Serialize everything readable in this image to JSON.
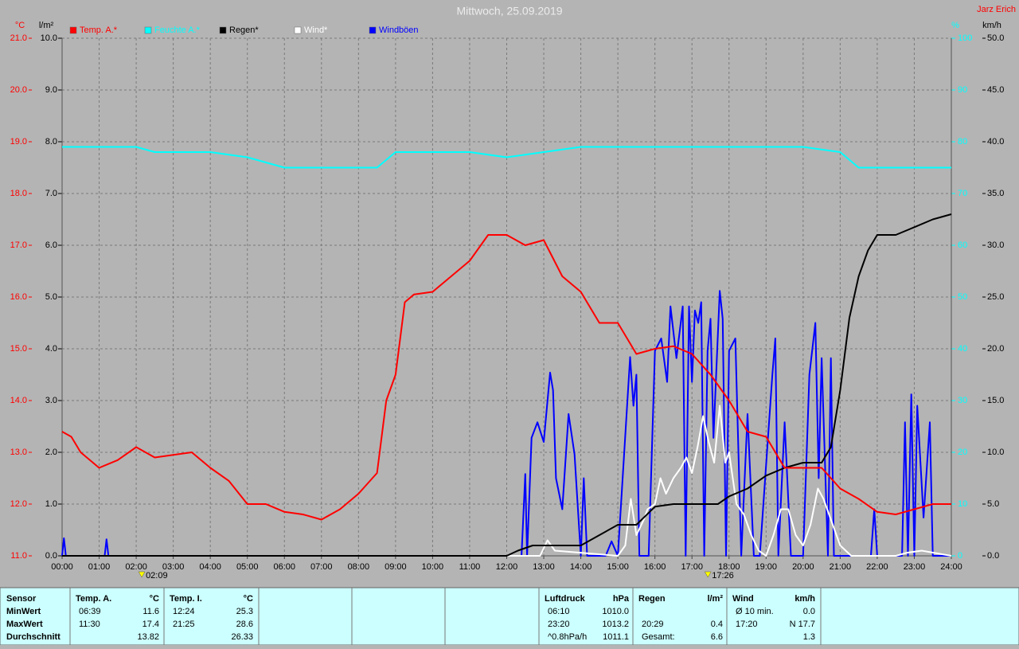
{
  "chart_data": {
    "type": "line",
    "title": "Mittwoch, 25.09.2019",
    "author": "Jarz Erich",
    "ylabel": "°C",
    "y2label": "l/m²",
    "y3label": "%",
    "y4label": "km/h",
    "xlim": [
      0,
      24
    ],
    "xticks": [
      {
        "value": 0,
        "label": "00:00"
      },
      {
        "value": 1,
        "label": "01:00"
      },
      {
        "value": 2,
        "label": "02:00"
      },
      {
        "value": 3,
        "label": "03:00"
      },
      {
        "value": 4,
        "label": "04:00"
      },
      {
        "value": 5,
        "label": "05:00"
      },
      {
        "value": 6,
        "label": "06:00"
      },
      {
        "value": 7,
        "label": "07:00"
      },
      {
        "value": 8,
        "label": "08:00"
      },
      {
        "value": 9,
        "label": "09:00"
      },
      {
        "value": 10,
        "label": "10:00"
      },
      {
        "value": 11,
        "label": "11:00"
      },
      {
        "value": 12,
        "label": "12:00"
      },
      {
        "value": 13,
        "label": "13:00"
      },
      {
        "value": 14,
        "label": "14:00"
      },
      {
        "value": 15,
        "label": "15:00"
      },
      {
        "value": 16,
        "label": "16:00"
      },
      {
        "value": 17,
        "label": "17:00"
      },
      {
        "value": 18,
        "label": "18:00"
      },
      {
        "value": 19,
        "label": "19:00"
      },
      {
        "value": 20,
        "label": "20:00"
      },
      {
        "value": 21,
        "label": "21:00"
      },
      {
        "value": 22,
        "label": "22:00"
      },
      {
        "value": 23,
        "label": "23:00"
      },
      {
        "value": 24,
        "label": "24:00"
      }
    ],
    "ylim": [
      11,
      21
    ],
    "yticks": [
      {
        "value": 11,
        "label": "11.0"
      },
      {
        "value": 12,
        "label": "12.0"
      },
      {
        "value": 13,
        "label": "13.0"
      },
      {
        "value": 14,
        "label": "14.0"
      },
      {
        "value": 15,
        "label": "15.0"
      },
      {
        "value": 16,
        "label": "16.0"
      },
      {
        "value": 17,
        "label": "17.0"
      },
      {
        "value": 18,
        "label": "18.0"
      },
      {
        "value": 19,
        "label": "19.0"
      },
      {
        "value": 20,
        "label": "20.0"
      },
      {
        "value": 21,
        "label": "21.0"
      }
    ],
    "y2lim": [
      0,
      10
    ],
    "y2ticks": [
      {
        "value": 0,
        "label": "0.0"
      },
      {
        "value": 1,
        "label": "1.0"
      },
      {
        "value": 2,
        "label": "2.0"
      },
      {
        "value": 3,
        "label": "3.0"
      },
      {
        "value": 4,
        "label": "4.0"
      },
      {
        "value": 5,
        "label": "5.0"
      },
      {
        "value": 6,
        "label": "6.0"
      },
      {
        "value": 7,
        "label": "7.0"
      },
      {
        "value": 8,
        "label": "8.0"
      },
      {
        "value": 9,
        "label": "9.0"
      },
      {
        "value": 10,
        "label": "10.0"
      }
    ],
    "y3lim": [
      0,
      100
    ],
    "y3ticks": [
      0,
      10,
      20,
      30,
      40,
      50,
      60,
      70,
      80,
      90,
      100
    ],
    "y4lim": [
      0,
      50
    ],
    "y4ticks": [
      {
        "value": 0,
        "label": "0.0"
      },
      {
        "value": 5,
        "label": "5.0"
      },
      {
        "value": 10,
        "label": "10.0"
      },
      {
        "value": 15,
        "label": "15.0"
      },
      {
        "value": 20,
        "label": "20.0"
      },
      {
        "value": 25,
        "label": "25.0"
      },
      {
        "value": 30,
        "label": "30.0"
      },
      {
        "value": 35,
        "label": "35.0"
      },
      {
        "value": 40,
        "label": "40.0"
      },
      {
        "value": 45,
        "label": "45.0"
      },
      {
        "value": 50,
        "label": "50.0"
      }
    ],
    "grid": true,
    "series": [
      {
        "name": "Temp. A.*",
        "color": "#ff0000",
        "axis": "y",
        "x": [
          0,
          0.25,
          0.5,
          1,
          1.5,
          2,
          2.5,
          3,
          3.5,
          4,
          4.5,
          5,
          5.5,
          6,
          6.5,
          7,
          7.5,
          8,
          8.5,
          8.75,
          9,
          9.25,
          9.5,
          10,
          10.5,
          11,
          11.5,
          12,
          12.5,
          13,
          13.5,
          14,
          14.5,
          15,
          15.5,
          16,
          16.5,
          17,
          17.5,
          18,
          18.5,
          19,
          19.5,
          20,
          20.5,
          21,
          21.5,
          22,
          22.5,
          23,
          23.5,
          24
        ],
        "values": [
          13.4,
          13.3,
          13.0,
          12.7,
          12.85,
          13.1,
          12.9,
          12.95,
          13.0,
          12.7,
          12.45,
          12.0,
          12.0,
          11.85,
          11.8,
          11.7,
          11.9,
          12.2,
          12.6,
          14.0,
          14.5,
          15.9,
          16.05,
          16.1,
          16.4,
          16.7,
          17.2,
          17.2,
          17.0,
          17.1,
          16.4,
          16.1,
          15.5,
          15.5,
          14.9,
          15.0,
          15.05,
          14.9,
          14.5,
          14.0,
          13.4,
          13.3,
          12.7,
          12.7,
          12.7,
          12.3,
          12.1,
          11.85,
          11.8,
          11.9,
          12.0,
          12.0
        ]
      },
      {
        "name": "Feuchte A.*",
        "color": "#00ffff",
        "axis": "y3",
        "x": [
          0,
          2,
          2.5,
          4,
          5,
          6,
          8,
          8.5,
          9,
          10,
          11,
          12,
          13,
          14,
          16,
          18,
          20,
          21,
          21.5,
          24
        ],
        "values": [
          79,
          79,
          78,
          78,
          77,
          75,
          75,
          75,
          78,
          78,
          78,
          77,
          78,
          79,
          79,
          79,
          79,
          78,
          75,
          75
        ]
      },
      {
        "name": "Regen*",
        "color": "#000000",
        "axis": "y2",
        "x": [
          0,
          12,
          12.3,
          12.7,
          13,
          13.5,
          14,
          14.5,
          15,
          15.5,
          16,
          16.5,
          17,
          17.5,
          17.7,
          18,
          18.5,
          19,
          19.5,
          20,
          20.5,
          20.75,
          21,
          21.25,
          21.5,
          21.75,
          22,
          22.5,
          23,
          23.5,
          24
        ],
        "values": [
          0,
          0,
          0.1,
          0.2,
          0.2,
          0.2,
          0.2,
          0.4,
          0.6,
          0.6,
          0.95,
          1.0,
          1.0,
          1.0,
          1.0,
          1.15,
          1.3,
          1.55,
          1.7,
          1.8,
          1.8,
          2.1,
          3.2,
          4.6,
          5.4,
          5.9,
          6.2,
          6.2,
          6.35,
          6.5,
          6.6
        ]
      },
      {
        "name": "Wind*",
        "color": "#ffffff",
        "axis": "y4",
        "x": [
          0,
          12.9,
          13.1,
          13.3,
          14,
          15,
          15.2,
          15.35,
          15.5,
          15.7,
          15.8,
          16,
          16.15,
          16.3,
          16.5,
          16.7,
          16.85,
          17,
          17.15,
          17.3,
          17.45,
          17.6,
          17.75,
          17.9,
          18,
          18.2,
          18.4,
          18.6,
          18.8,
          19,
          19.2,
          19.4,
          19.6,
          19.8,
          20,
          20.2,
          20.4,
          20.55,
          20.7,
          20.9,
          21,
          21.3,
          22.5,
          22.8,
          23.2,
          24
        ],
        "values": [
          0,
          0,
          1.5,
          0.5,
          0.3,
          0,
          1,
          5.5,
          2,
          3.5,
          4.5,
          5,
          7.5,
          6,
          7.5,
          8.5,
          9.5,
          8,
          10.5,
          13.5,
          11,
          9,
          14.5,
          9,
          10,
          5,
          4,
          2,
          0.5,
          0,
          2,
          4.5,
          4.5,
          2,
          1,
          3,
          6.5,
          5.5,
          4,
          2,
          1,
          0,
          0,
          0.3,
          0.5,
          0
        ]
      },
      {
        "name": "Windböen",
        "color": "#0000ff",
        "axis": "y4",
        "x": [
          0,
          0.05,
          0.1,
          1.15,
          1.2,
          1.25,
          12.4,
          12.5,
          12.55,
          12.67,
          12.83,
          13,
          13.17,
          13.25,
          13.33,
          13.5,
          13.67,
          13.83,
          14,
          14.08,
          14.17,
          14.67,
          14.83,
          15,
          15.33,
          15.42,
          15.5,
          15.58,
          15.83,
          16,
          16.17,
          16.33,
          16.42,
          16.58,
          16.75,
          16.83,
          16.92,
          17,
          17.08,
          17.17,
          17.25,
          17.33,
          17.42,
          17.5,
          17.58,
          17.75,
          17.83,
          17.92,
          18,
          18.17,
          18.33,
          18.5,
          18.67,
          18.83,
          19.17,
          19.25,
          19.33,
          19.5,
          19.67,
          20,
          20.17,
          20.33,
          20.42,
          20.5,
          20.67,
          20.75,
          20.83,
          21,
          21.83,
          21.92,
          22,
          22.67,
          22.75,
          22.83,
          22.92,
          23,
          23.08,
          23.25,
          23.42,
          23.5,
          23.67,
          24
        ],
        "values": [
          0,
          1.7,
          0,
          0,
          1.6,
          0,
          0,
          7.9,
          0,
          11.4,
          12.9,
          11,
          17.7,
          16,
          7.5,
          4.5,
          13.7,
          9.8,
          0,
          7.5,
          0,
          0,
          1.4,
          0,
          19.2,
          14.5,
          17.5,
          0,
          0,
          19.8,
          21,
          16.8,
          24.1,
          19.1,
          24.1,
          0,
          24.1,
          16.8,
          23.7,
          22.5,
          24.5,
          0,
          19.8,
          22.9,
          11.4,
          25.6,
          22.9,
          0,
          19.8,
          21,
          0,
          13.7,
          0,
          0,
          17.5,
          21,
          0,
          12.9,
          0,
          0,
          17.5,
          22.5,
          7.5,
          19.1,
          0,
          19.1,
          0,
          0,
          0,
          4.5,
          0,
          0,
          12.9,
          0,
          15.6,
          0,
          14.5,
          3.7,
          12.9,
          0,
          0,
          0
        ]
      }
    ],
    "annotations": [
      {
        "text": "02:09",
        "x": 2.15
      },
      {
        "text": "17:26",
        "x": 17.43
      }
    ]
  },
  "stats": {
    "panels": [
      {
        "header": [
          "Sensor"
        ],
        "rows": [
          [
            "MinWert"
          ],
          [
            "MaxWert"
          ],
          [
            "Durchschnitt"
          ]
        ]
      },
      {
        "header": [
          "Temp. A.",
          "°C"
        ],
        "rows": [
          [
            "06:39",
            "11.6"
          ],
          [
            "11:30",
            "17.4"
          ],
          [
            "13.82"
          ]
        ]
      },
      {
        "header": [
          "Temp. I.",
          "°C"
        ],
        "rows": [
          [
            "12:24",
            "25.3"
          ],
          [
            "21:25",
            "28.6"
          ],
          [
            "26.33"
          ]
        ]
      },
      {
        "header": [
          "Luftdruck",
          "hPa"
        ],
        "rows": [
          [
            "06:10",
            "1010.0"
          ],
          [
            "23:20",
            "1013.2"
          ],
          [
            "^0.8hPa/h",
            "1011.1"
          ]
        ]
      },
      {
        "header": [
          "Regen",
          "l/m²"
        ],
        "rows": [
          null,
          [
            "20:29",
            "0.4"
          ],
          [
            "Gesamt:",
            "6.6"
          ]
        ]
      },
      {
        "header": [
          "Wind",
          "km/h"
        ],
        "rows": [
          [
            "Ø 10 min.",
            "0.0"
          ],
          [
            "17:20",
            "N 17.7"
          ],
          [
            "1.3"
          ]
        ]
      }
    ]
  }
}
